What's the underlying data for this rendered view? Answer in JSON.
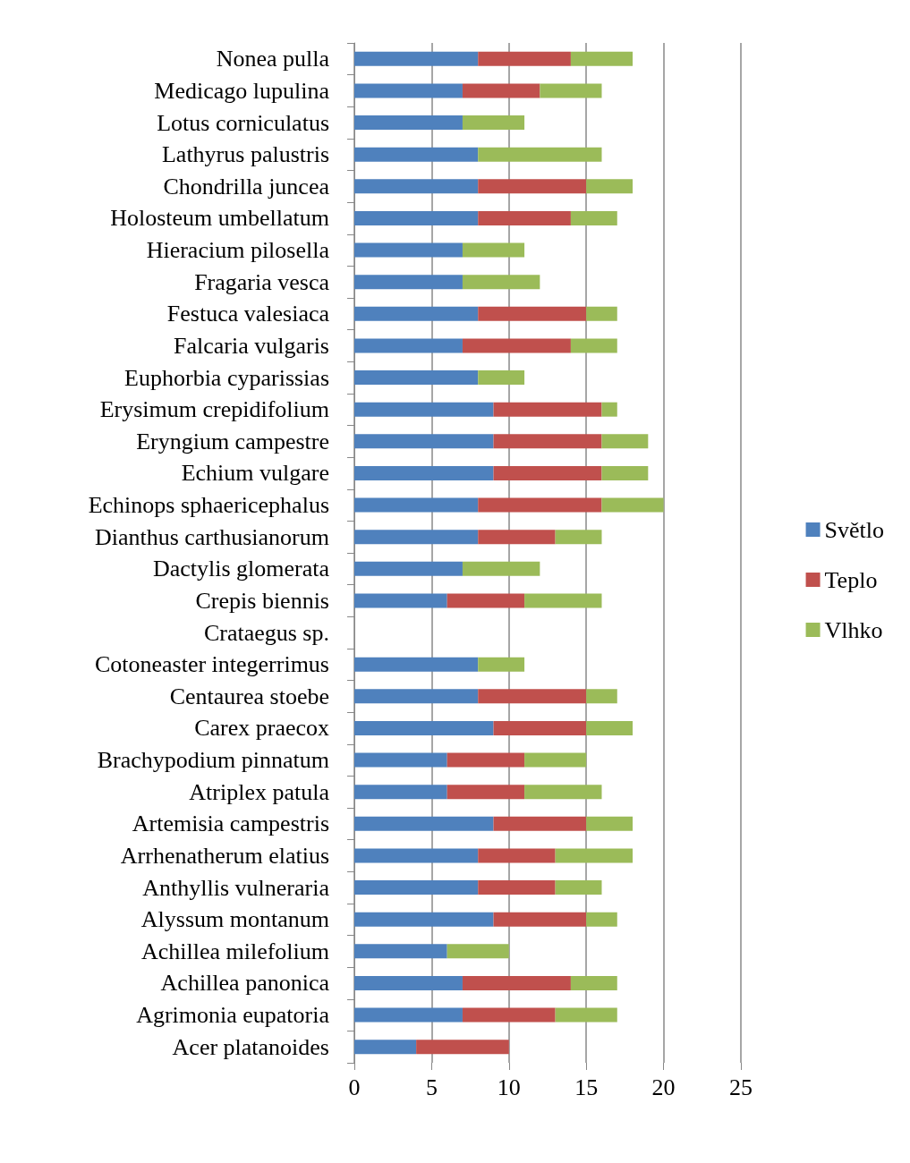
{
  "chart_data": {
    "type": "bar",
    "orientation": "horizontal",
    "stacked": true,
    "categories": [
      "Nonea pulla",
      "Medicago lupulina",
      "Lotus corniculatus",
      "Lathyrus palustris",
      "Chondrilla juncea",
      "Holosteum umbellatum",
      "Hieracium pilosella",
      "Fragaria vesca",
      "Festuca valesiaca",
      "Falcaria vulgaris",
      "Euphorbia cyparissias",
      "Erysimum crepidifolium",
      "Eryngium campestre",
      "Echium vulgare",
      "Echinops sphaericephalus",
      "Dianthus carthusianorum",
      "Dactylis glomerata",
      "Crepis biennis",
      "Crataegus sp.",
      "Cotoneaster integerrimus",
      "Centaurea stoebe",
      "Carex praecox",
      "Brachypodium pinnatum",
      "Atriplex patula",
      "Artemisia campestris",
      "Arrhenatherum elatius",
      "Anthyllis vulneraria",
      "Alyssum montanum",
      "Achillea milefolium",
      "Achillea panonica",
      "Agrimonia eupatoria",
      "Acer platanoides"
    ],
    "series": [
      {
        "name": "Světlo",
        "color": "#4f81bd",
        "values": [
          8,
          7,
          7,
          8,
          8,
          8,
          7,
          7,
          8,
          7,
          8,
          9,
          9,
          9,
          8,
          8,
          7,
          6,
          null,
          8,
          8,
          9,
          6,
          6,
          9,
          8,
          8,
          9,
          6,
          7,
          7,
          4
        ]
      },
      {
        "name": "Teplo",
        "color": "#c0504d",
        "values": [
          6,
          5,
          null,
          null,
          7,
          6,
          null,
          null,
          7,
          7,
          null,
          7,
          7,
          7,
          8,
          5,
          null,
          5,
          null,
          null,
          7,
          6,
          5,
          5,
          6,
          5,
          5,
          6,
          null,
          7,
          6,
          6
        ]
      },
      {
        "name": "Vlhko",
        "color": "#9bbb59",
        "values": [
          4,
          4,
          4,
          8,
          3,
          3,
          4,
          5,
          2,
          3,
          3,
          1,
          3,
          3,
          4,
          3,
          5,
          5,
          null,
          3,
          2,
          3,
          4,
          5,
          3,
          5,
          3,
          2,
          4,
          3,
          4,
          null
        ]
      }
    ],
    "xlim": [
      0,
      25
    ],
    "xticks": [
      0,
      5,
      10,
      15,
      20,
      25
    ],
    "grid": "x",
    "legend": "right"
  }
}
